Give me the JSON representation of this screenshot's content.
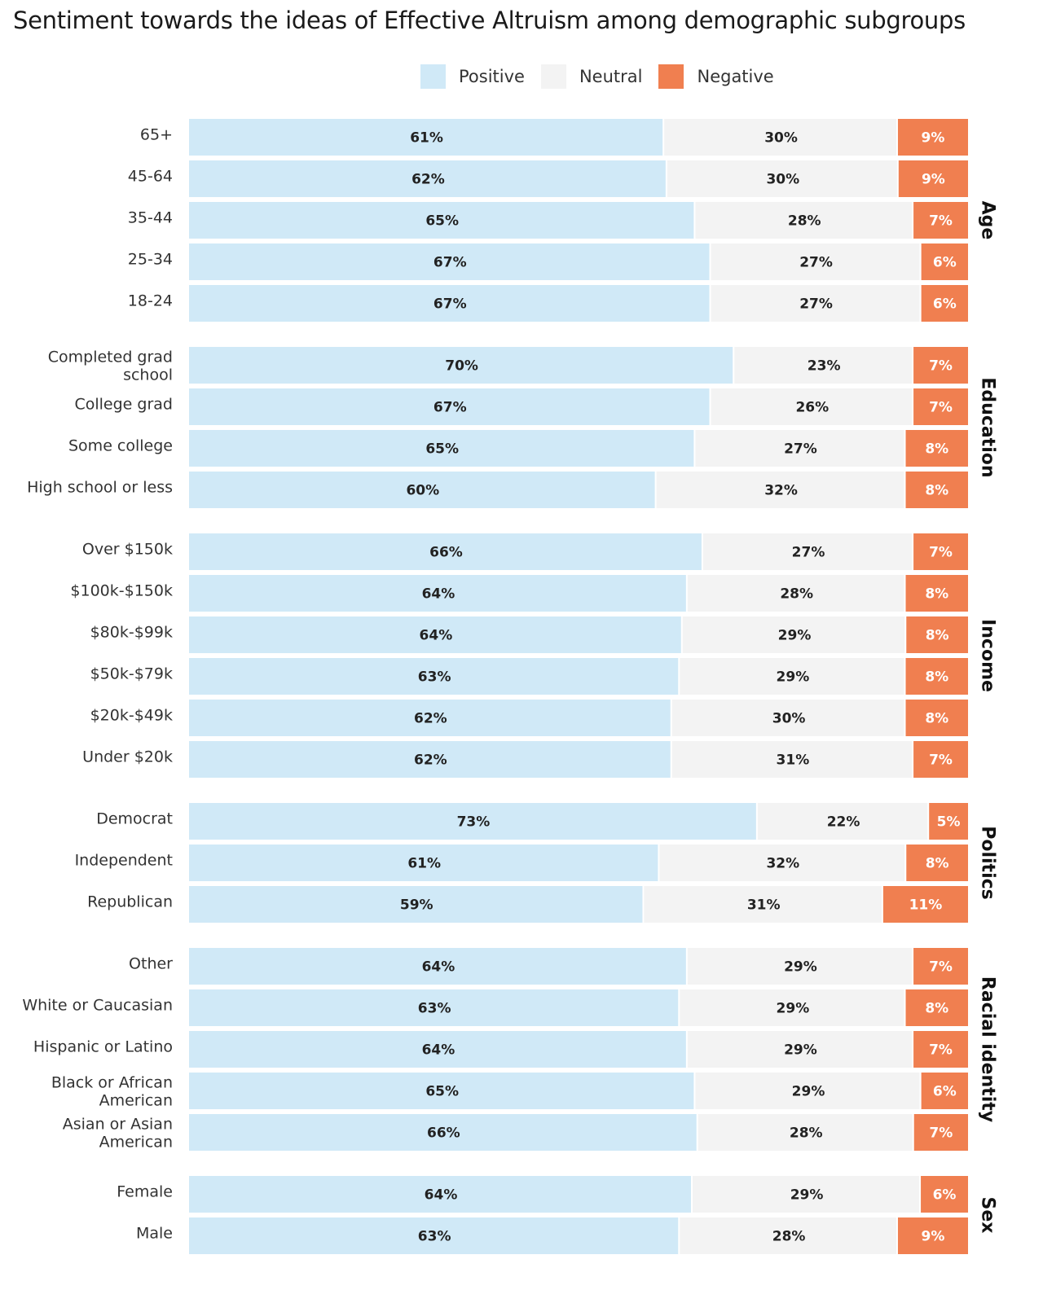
{
  "chart_data": {
    "type": "bar",
    "orientation": "horizontal",
    "stacked": true,
    "normalized": true,
    "title": "Sentiment towards the ideas of Effective Altruism among demographic subgroups",
    "xlabel": "",
    "ylabel": "",
    "xlim": [
      0,
      100
    ],
    "grid": false,
    "legend_position": "top-center",
    "series": [
      {
        "name": "Positive",
        "color": "#d0e9f7",
        "label_color": "#222222"
      },
      {
        "name": "Neutral",
        "color": "#f3f3f3",
        "label_color": "#222222"
      },
      {
        "name": "Negative",
        "color": "#f07f50",
        "label_color": "#ffffff"
      }
    ],
    "groups": [
      {
        "name": "Age",
        "rows": [
          {
            "label": [
              "65+"
            ],
            "values": [
              61,
              30,
              9
            ]
          },
          {
            "label": [
              "45-64"
            ],
            "values": [
              62,
              30,
              9
            ]
          },
          {
            "label": [
              "35-44"
            ],
            "values": [
              65,
              28,
              7
            ]
          },
          {
            "label": [
              "25-34"
            ],
            "values": [
              67,
              27,
              6
            ]
          },
          {
            "label": [
              "18-24"
            ],
            "values": [
              67,
              27,
              6
            ]
          }
        ]
      },
      {
        "name": "Education",
        "rows": [
          {
            "label": [
              "Completed grad",
              "school"
            ],
            "values": [
              70,
              23,
              7
            ]
          },
          {
            "label": [
              "College grad"
            ],
            "values": [
              67,
              26,
              7
            ]
          },
          {
            "label": [
              "Some college"
            ],
            "values": [
              65,
              27,
              8
            ]
          },
          {
            "label": [
              "High school or less"
            ],
            "values": [
              60,
              32,
              8
            ]
          }
        ]
      },
      {
        "name": "Income",
        "rows": [
          {
            "label": [
              "Over $150k"
            ],
            "values": [
              66,
              27,
              7
            ]
          },
          {
            "label": [
              "$100k-$150k"
            ],
            "values": [
              64,
              28,
              8
            ]
          },
          {
            "label": [
              "$80k-$99k"
            ],
            "values": [
              64,
              29,
              8
            ]
          },
          {
            "label": [
              "$50k-$79k"
            ],
            "values": [
              63,
              29,
              8
            ]
          },
          {
            "label": [
              "$20k-$49k"
            ],
            "values": [
              62,
              30,
              8
            ]
          },
          {
            "label": [
              "Under $20k"
            ],
            "values": [
              62,
              31,
              7
            ]
          }
        ]
      },
      {
        "name": "Politics",
        "rows": [
          {
            "label": [
              "Democrat"
            ],
            "values": [
              73,
              22,
              5
            ]
          },
          {
            "label": [
              "Independent"
            ],
            "values": [
              61,
              32,
              8
            ]
          },
          {
            "label": [
              "Republican"
            ],
            "values": [
              59,
              31,
              11
            ]
          }
        ]
      },
      {
        "name": "Racial identity",
        "rows": [
          {
            "label": [
              "Other"
            ],
            "values": [
              64,
              29,
              7
            ]
          },
          {
            "label": [
              "White or Caucasian"
            ],
            "values": [
              63,
              29,
              8
            ]
          },
          {
            "label": [
              "Hispanic or Latino"
            ],
            "values": [
              64,
              29,
              7
            ]
          },
          {
            "label": [
              "Black or African",
              "American"
            ],
            "values": [
              65,
              29,
              6
            ]
          },
          {
            "label": [
              "Asian or Asian",
              "American"
            ],
            "values": [
              66,
              28,
              7
            ]
          }
        ]
      },
      {
        "name": "Sex",
        "rows": [
          {
            "label": [
              "Female"
            ],
            "values": [
              64,
              29,
              6
            ]
          },
          {
            "label": [
              "Male"
            ],
            "values": [
              63,
              28,
              9
            ]
          }
        ]
      }
    ],
    "value_suffix": "%"
  }
}
